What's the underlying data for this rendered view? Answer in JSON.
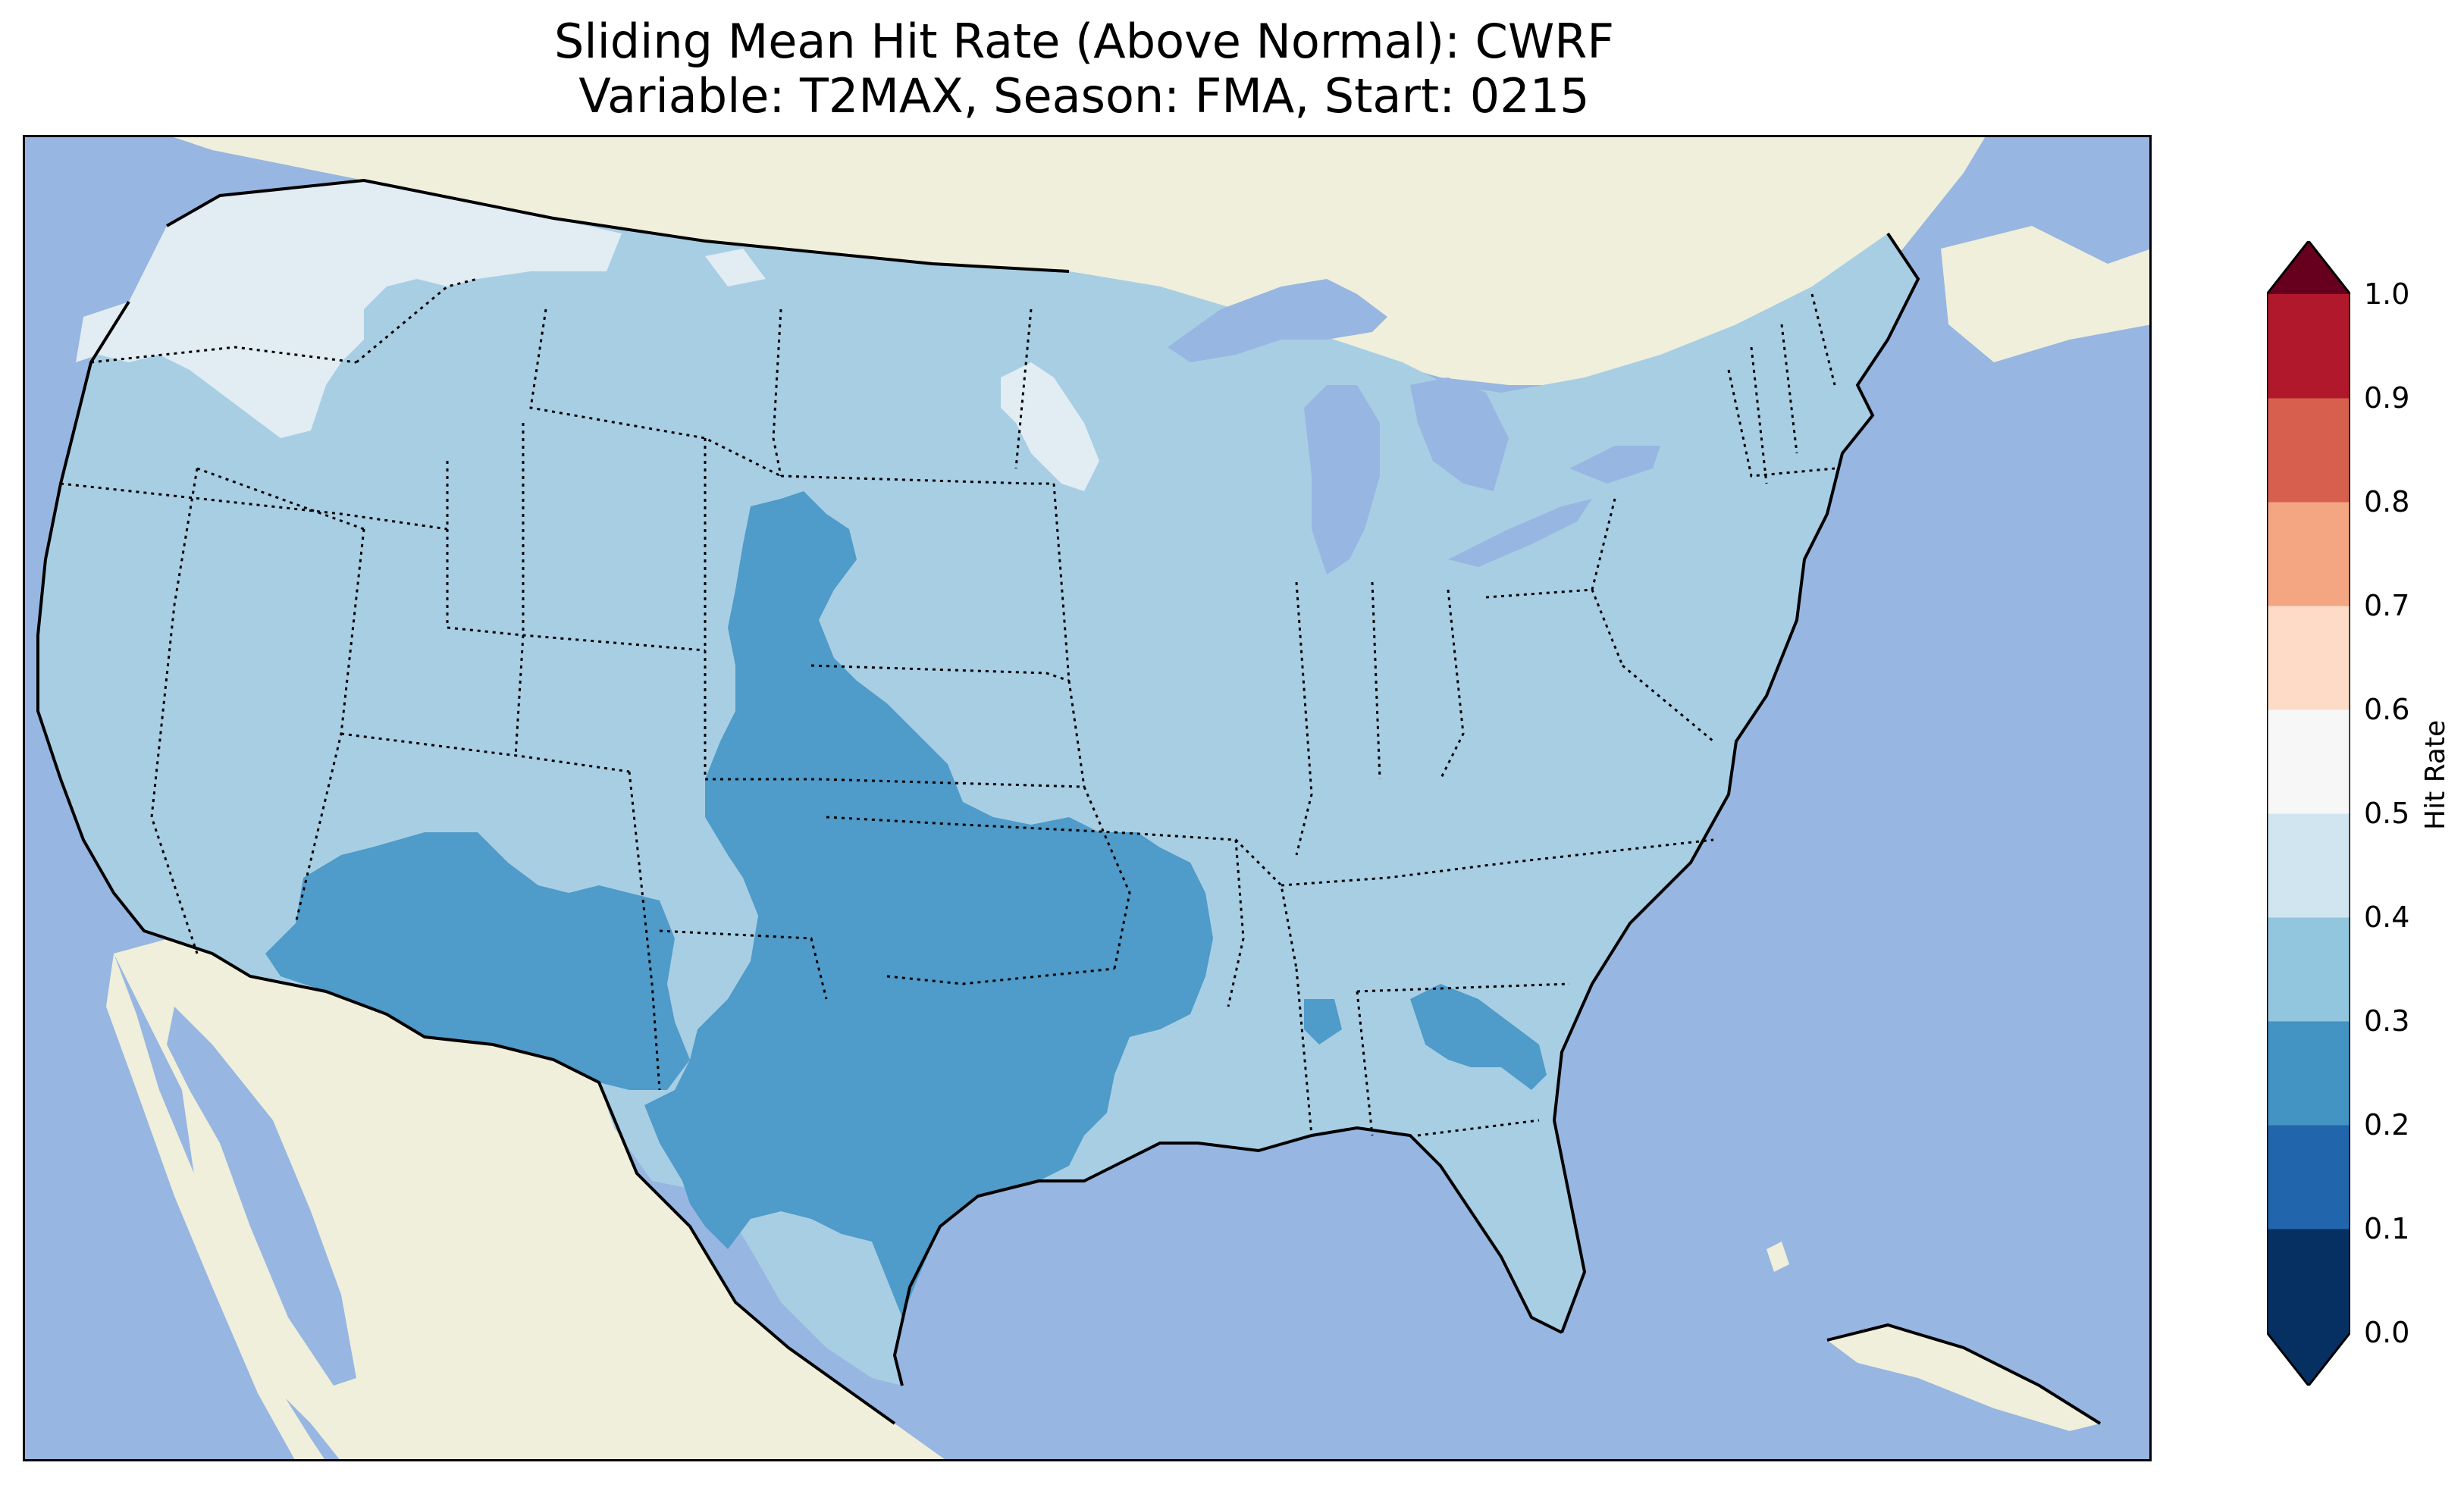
{
  "title": {
    "line1": "Sliding Mean Hit Rate (Above Normal): CWRF",
    "line2": "Variable: T2MAX, Season: FMA, Start: 0215"
  },
  "colorbar": {
    "label": "Hit Rate",
    "ticks": [
      "0.0",
      "0.1",
      "0.2",
      "0.3",
      "0.4",
      "0.5",
      "0.6",
      "0.7",
      "0.8",
      "0.9",
      "1.0"
    ],
    "extend": "both",
    "colors": [
      "#053061",
      "#2166ac",
      "#4393c3",
      "#92c5de",
      "#d1e5f0",
      "#f7f7f7",
      "#fddbc7",
      "#f4a582",
      "#d6604d",
      "#b2182b",
      "#67001f"
    ]
  },
  "map": {
    "region": "Contiguous United States",
    "ocean_color": "#97b6e1",
    "land_color": "#efefdb",
    "classes": [
      {
        "range": "0.2-0.3",
        "color": "#4f9bc9",
        "areas": [
          "Southwest",
          "Southern Plains",
          "Texas",
          "Arkansas",
          "Colorado"
        ]
      },
      {
        "range": "0.3-0.4",
        "color": "#a8cee4",
        "areas": [
          "Most of the contiguous US"
        ]
      },
      {
        "range": "0.4-0.5",
        "color": "#e1ecf3",
        "areas": [
          "Pacific Northwest",
          "Northern Rockies",
          "Northern Minnesota"
        ]
      }
    ]
  }
}
